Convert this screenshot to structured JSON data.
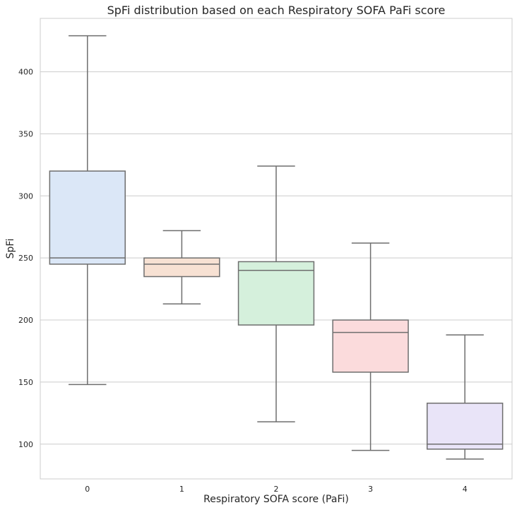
{
  "chart_data": {
    "type": "box",
    "title": "SpFi distribution based on each Respiratory SOFA PaFi score",
    "xlabel": "Respiratory SOFA score (PaFi)",
    "ylabel": "SpFi",
    "ylim": [
      72,
      443
    ],
    "yticks": [
      100,
      150,
      200,
      250,
      300,
      350,
      400
    ],
    "grid": "horizontal",
    "categories": [
      "0",
      "1",
      "2",
      "3",
      "4"
    ],
    "boxes": [
      {
        "category": "0",
        "whisker_low": 148,
        "q1": 245,
        "median": 250,
        "q3": 320,
        "whisker_high": 429,
        "color": "#dbe7f7"
      },
      {
        "category": "1",
        "whisker_low": 213,
        "q1": 235,
        "median": 245,
        "q3": 250,
        "whisker_high": 272,
        "color": "#f7e1d3"
      },
      {
        "category": "2",
        "whisker_low": 118,
        "q1": 196,
        "median": 240,
        "q3": 247,
        "whisker_high": 324,
        "color": "#d5f0dc"
      },
      {
        "category": "3",
        "whisker_low": 95,
        "q1": 158,
        "median": 190,
        "q3": 200,
        "whisker_high": 262,
        "color": "#fbdbdc"
      },
      {
        "category": "4",
        "whisker_low": 88,
        "q1": 96,
        "median": 100,
        "q3": 133,
        "whisker_high": 188,
        "color": "#e9e4f8"
      }
    ],
    "line_color": "#6e6e6e",
    "grid_color": "#cccccc"
  }
}
